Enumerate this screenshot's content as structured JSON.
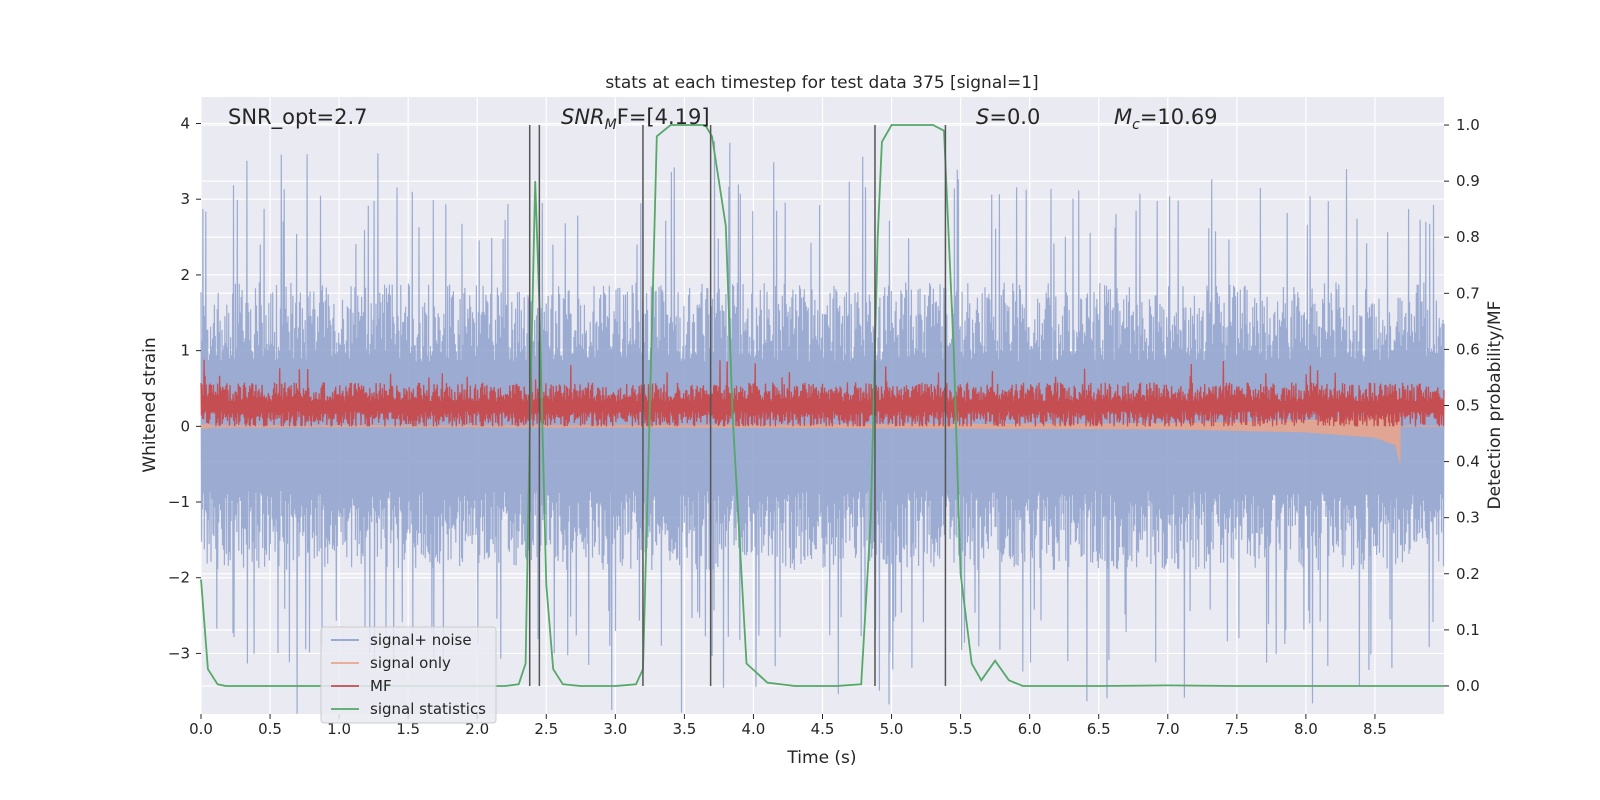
{
  "chart_data": {
    "type": "line",
    "title": "stats at each timestep for test data 375 [signal=1]",
    "xlabel": "Time (s)",
    "ylabel_left": "Whitened strain",
    "ylabel_right": "Detection probability/MF",
    "xlim": [
      0.0,
      9.0
    ],
    "ylim_left": [
      -3.8,
      4.35
    ],
    "ylim_right": [
      -0.05,
      1.05
    ],
    "x_ticks": [
      "0.0",
      "0.5",
      "1.0",
      "1.5",
      "2.0",
      "2.5",
      "3.0",
      "3.5",
      "4.0",
      "4.5",
      "5.0",
      "5.5",
      "6.0",
      "6.5",
      "7.0",
      "7.5",
      "8.0",
      "8.5"
    ],
    "y_left_ticks": [
      "−3",
      "−2",
      "−1",
      "0",
      "1",
      "2",
      "3",
      "4"
    ],
    "y_right_ticks": [
      "0.0",
      "0.1",
      "0.2",
      "0.3",
      "0.4",
      "0.5",
      "0.6",
      "0.7",
      "0.8",
      "0.9",
      "1.0"
    ],
    "grid": true,
    "legend_placement": "lower-left",
    "annotations": {
      "snr_opt": "SNR_opt=2.7",
      "snr_mf_sym": "SNR",
      "snr_mf_sub": "M",
      "snr_mf_val": "F=[4.19]",
      "s_sym": "S",
      "s_val": "=0.0",
      "mc_sym": "M",
      "mc_sub": "c",
      "mc_val": "=10.69"
    },
    "series": [
      {
        "name": "signal+ noise",
        "color": "#8da0cb",
        "axis": "left",
        "envelope": {
          "typical": [
            -1.9,
            1.9
          ],
          "peak": [
            -3.6,
            3.8
          ]
        }
      },
      {
        "name": "signal only",
        "color": "#e8a58c",
        "axis": "left",
        "description_points": {
          "x": [
            0.0,
            4.0,
            7.0,
            8.0,
            8.5,
            8.65,
            8.68
          ],
          "amplitude": [
            0.01,
            0.02,
            0.04,
            0.08,
            0.15,
            0.25,
            0.5
          ]
        }
      },
      {
        "name": "MF",
        "color": "#c44e52",
        "axis": "left",
        "center": 0.25,
        "envelope": [
          0.0,
          0.9
        ]
      },
      {
        "name": "signal statistics",
        "color": "#55a868",
        "axis": "right",
        "x": [
          0.0,
          0.05,
          0.12,
          0.18,
          0.3,
          0.6,
          1.0,
          1.5,
          2.0,
          2.2,
          2.3,
          2.35,
          2.38,
          2.42,
          2.45,
          2.5,
          2.55,
          2.62,
          2.75,
          3.0,
          3.15,
          3.2,
          3.25,
          3.3,
          3.4,
          3.55,
          3.65,
          3.7,
          3.75,
          3.8,
          3.85,
          3.95,
          4.1,
          4.3,
          4.6,
          4.78,
          4.85,
          4.9,
          4.93,
          5.0,
          5.15,
          5.3,
          5.38,
          5.45,
          5.5,
          5.58,
          5.65,
          5.75,
          5.85,
          5.95,
          6.1,
          6.5,
          7.0,
          7.5,
          8.0,
          8.5,
          8.9,
          9.0
        ],
        "y": [
          0.19,
          0.03,
          0.003,
          0.0,
          0.0,
          0.0,
          0.0,
          0.0,
          0.0,
          0.0,
          0.003,
          0.04,
          0.45,
          0.9,
          0.68,
          0.18,
          0.03,
          0.003,
          0.0,
          0.0,
          0.003,
          0.03,
          0.5,
          0.98,
          1.0,
          1.0,
          1.0,
          0.98,
          0.9,
          0.82,
          0.48,
          0.04,
          0.006,
          0.0,
          0.0,
          0.003,
          0.3,
          0.8,
          0.97,
          1.0,
          1.0,
          1.0,
          0.99,
          0.6,
          0.2,
          0.04,
          0.01,
          0.045,
          0.01,
          0.0,
          0.0,
          0.0,
          0.001,
          0.0,
          0.0,
          0.0,
          0.0,
          0.0
        ]
      }
    ],
    "vertical_markers": [
      2.38,
      2.45,
      3.2,
      3.69,
      4.88,
      5.39
    ]
  }
}
